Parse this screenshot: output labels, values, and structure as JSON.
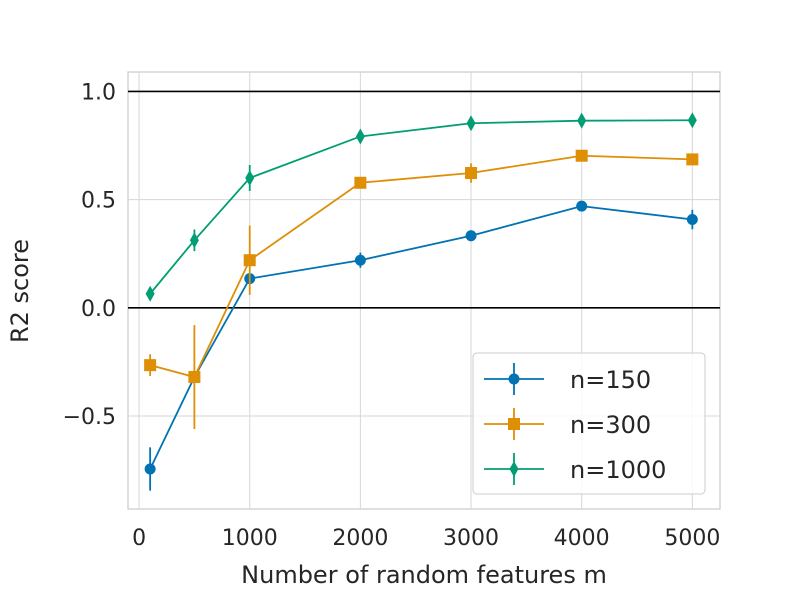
{
  "chart_data": {
    "type": "line",
    "xlabel": "Number of random features m",
    "ylabel": "R2 score",
    "xlim": [
      -100,
      5250
    ],
    "ylim": [
      -0.93,
      1.09
    ],
    "xticks": [
      0,
      1000,
      2000,
      3000,
      4000,
      5000
    ],
    "xtick_labels": [
      "0",
      "1000",
      "2000",
      "3000",
      "4000",
      "5000"
    ],
    "yticks": [
      -0.5,
      0.0,
      0.5,
      1.0
    ],
    "ytick_labels": [
      "−0.5",
      "0.0",
      "0.5",
      "1.0"
    ],
    "reference_lines": [
      0.0,
      1.0
    ],
    "grid": true,
    "legend_position": "lower-right",
    "x": [
      100,
      500,
      1000,
      2000,
      3000,
      4000,
      5000
    ],
    "series": [
      {
        "name": "n=150",
        "color": "#0173b2",
        "marker": "circle",
        "values": [
          -0.745,
          -0.32,
          0.135,
          0.22,
          0.333,
          0.47,
          0.408
        ],
        "errors": [
          0.1,
          0.02,
          0.02,
          0.035,
          0.025,
          0.015,
          0.045
        ]
      },
      {
        "name": "n=300",
        "color": "#de8f05",
        "marker": "square",
        "values": [
          -0.265,
          -0.32,
          0.22,
          0.578,
          0.623,
          0.703,
          0.686
        ],
        "errors": [
          0.05,
          0.24,
          0.16,
          0.015,
          0.045,
          0.015,
          0.015
        ]
      },
      {
        "name": "n=1000",
        "color": "#029e73",
        "marker": "diamond",
        "values": [
          0.065,
          0.312,
          0.6,
          0.792,
          0.853,
          0.865,
          0.867
        ],
        "errors": [
          0.015,
          0.05,
          0.06,
          0.015,
          0.015,
          0.01,
          0.01
        ]
      }
    ]
  }
}
